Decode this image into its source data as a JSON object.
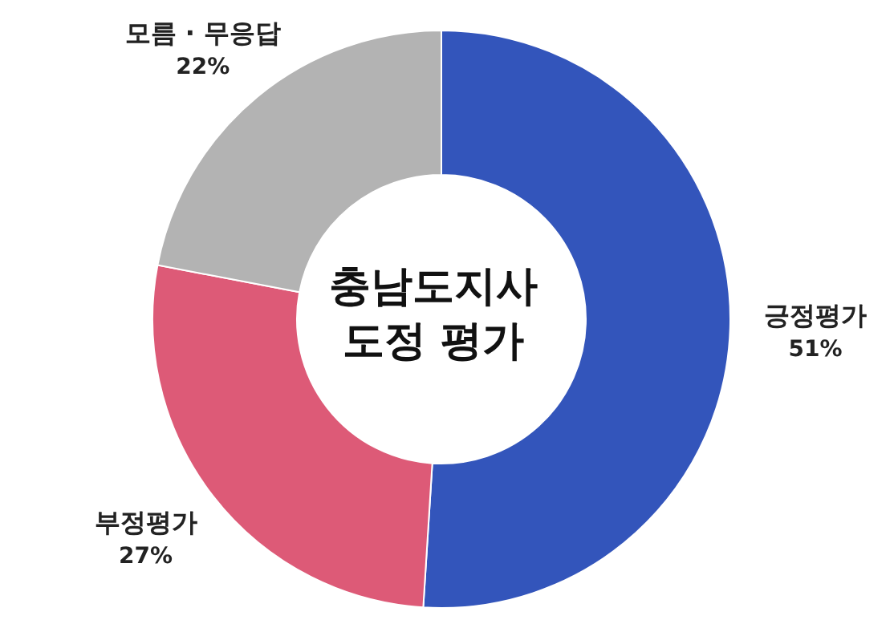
{
  "chart_data": {
    "type": "donut",
    "title": "충남도지사\n도정 평가",
    "categories": [
      "긍정평가",
      "부정평가",
      "모름 · 무응답"
    ],
    "values": [
      51,
      27,
      22
    ],
    "colors": [
      "#3355bb",
      "#dd5a77",
      "#b3b3b3"
    ],
    "value_labels": [
      "51%",
      "27%",
      "22%"
    ],
    "legend": false
  }
}
